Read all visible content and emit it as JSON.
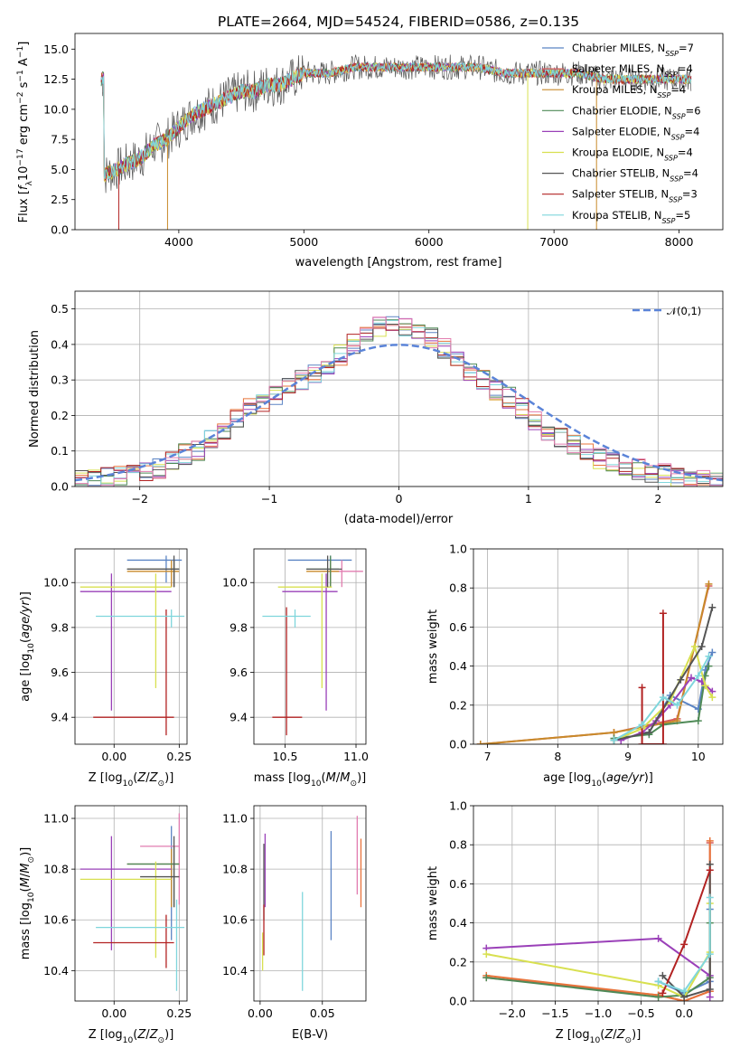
{
  "chart_data": [
    {
      "id": "spectrum",
      "type": "line",
      "title": "PLATE=2664, MJD=54524, FIBERID=0586, z=0.135",
      "xlabel": "wavelength [Angstrom, rest frame]",
      "ylabel": "Flux [f_λ 10^-17 erg cm^-2 s^-1 A^-1]",
      "xlim": [
        3170,
        8350
      ],
      "ylim": [
        0,
        16.3
      ],
      "xticks": [
        4000,
        5000,
        6000,
        7000,
        8000
      ],
      "yticks": [
        0.0,
        2.5,
        5.0,
        7.5,
        10.0,
        12.5,
        15.0
      ],
      "grid": false,
      "legend_position": "right",
      "series": [
        {
          "name": "Chabrier MILES, N_SSP=7",
          "color": "#5b84c4"
        },
        {
          "name": "Salpeter MILES, N_SSP=4",
          "color": "#d65a5a"
        },
        {
          "name": "Kroupa MILES, N_SSP=4",
          "color": "#c88a2a"
        },
        {
          "name": "Chabrier ELODIE, N_SSP=6",
          "color": "#4f8a57"
        },
        {
          "name": "Salpeter ELODIE, N_SSP=4",
          "color": "#9a40b8"
        },
        {
          "name": "Kroupa ELODIE, N_SSP=4",
          "color": "#d8e050"
        },
        {
          "name": "Chabrier STELIB, N_SSP=4",
          "color": "#555555"
        },
        {
          "name": "Salpeter STELIB, N_SSP=3",
          "color": "#b22222"
        },
        {
          "name": "Kroupa STELIB, N_SSP=5",
          "color": "#7fd6dc"
        }
      ],
      "data_envelope": {
        "x": [
          3400,
          3500,
          3600,
          3700,
          3800,
          3900,
          4000,
          4100,
          4200,
          4300,
          4400,
          4500,
          4600,
          4700,
          4800,
          4900,
          5000,
          5200,
          5400,
          5600,
          5800,
          6000,
          6200,
          6400,
          6600,
          6800,
          7000,
          7200,
          7400,
          7600,
          7800,
          8000,
          8100
        ],
        "y": [
          4.5,
          5.0,
          5.5,
          6.0,
          7.0,
          7.5,
          8.5,
          9.5,
          10.0,
          10.5,
          11.0,
          11.5,
          11.5,
          12.0,
          12.0,
          12.5,
          13.0,
          13.0,
          13.5,
          13.5,
          13.5,
          13.5,
          13.5,
          13.5,
          13.0,
          13.0,
          13.0,
          13.0,
          12.5,
          12.5,
          12.5,
          12.5,
          12.5
        ]
      }
    },
    {
      "id": "residuals",
      "type": "histogram",
      "xlabel": "(data-model)/error",
      "ylabel": "Normed distribution",
      "xlim": [
        -2.5,
        2.5
      ],
      "ylim": [
        0,
        0.55
      ],
      "xticks": [
        -2,
        -1,
        0,
        1,
        2
      ],
      "yticks": [
        0.0,
        0.1,
        0.2,
        0.3,
        0.4,
        0.5
      ],
      "grid": true,
      "legend": "𝒩(0,1)",
      "legend_position": "top-right",
      "reference_color": "#5b84d8",
      "bin_width": 0.1,
      "bin_values": [
        0.015,
        0.02,
        0.025,
        0.03,
        0.035,
        0.04,
        0.05,
        0.07,
        0.09,
        0.1,
        0.13,
        0.15,
        0.19,
        0.22,
        0.24,
        0.26,
        0.28,
        0.3,
        0.32,
        0.34,
        0.37,
        0.4,
        0.42,
        0.45,
        0.46,
        0.45,
        0.43,
        0.42,
        0.39,
        0.36,
        0.32,
        0.3,
        0.27,
        0.25,
        0.22,
        0.19,
        0.16,
        0.14,
        0.12,
        0.1,
        0.08,
        0.07,
        0.06,
        0.05,
        0.04,
        0.035,
        0.03,
        0.025,
        0.02,
        0.015
      ]
    },
    {
      "id": "age-vs-Z",
      "type": "errorbar",
      "xlabel": "Z [log10(Z/Z⊙)]",
      "ylabel": "age  [log10(age/yr)]",
      "xlim": [
        -0.15,
        0.28
      ],
      "ylim": [
        9.28,
        10.15
      ],
      "xticks": [
        0.0,
        0.25
      ],
      "xticklabels": [
        "0.00",
        "0.25"
      ],
      "yticks": [
        9.4,
        9.6,
        9.8,
        10.0
      ],
      "grid": true,
      "points": [
        {
          "x": 0.2,
          "y": 10.1,
          "xlo": 0.05,
          "xhi": 0.26,
          "ylo": 10.0,
          "yhi": 10.12,
          "color": "#5b84c4"
        },
        {
          "x": 0.23,
          "y": 10.06,
          "xlo": 0.05,
          "xhi": 0.25,
          "ylo": 9.98,
          "yhi": 10.1,
          "color": "#d65a5a"
        },
        {
          "x": 0.22,
          "y": 10.05,
          "xlo": 0.05,
          "xhi": 0.25,
          "ylo": 9.98,
          "yhi": 10.1,
          "color": "#c88a2a"
        },
        {
          "x": 0.23,
          "y": 10.06,
          "xlo": 0.05,
          "xhi": 0.25,
          "ylo": 9.98,
          "yhi": 10.1,
          "color": "#4f8a57"
        },
        {
          "x": -0.01,
          "y": 9.96,
          "xlo": -0.13,
          "xhi": 0.22,
          "ylo": 9.43,
          "yhi": 10.04,
          "color": "#9a40b8"
        },
        {
          "x": 0.16,
          "y": 9.98,
          "xlo": -0.13,
          "xhi": 0.22,
          "ylo": 9.53,
          "yhi": 10.04,
          "color": "#d8e050"
        },
        {
          "x": 0.23,
          "y": 10.06,
          "xlo": 0.05,
          "xhi": 0.25,
          "ylo": 9.98,
          "yhi": 10.12,
          "color": "#555555"
        },
        {
          "x": 0.2,
          "y": 9.4,
          "xlo": -0.08,
          "xhi": 0.23,
          "ylo": 9.32,
          "yhi": 9.88,
          "color": "#b22222"
        },
        {
          "x": 0.22,
          "y": 9.85,
          "xlo": -0.07,
          "xhi": 0.27,
          "ylo": 9.8,
          "yhi": 9.88,
          "color": "#7fd6dc"
        }
      ]
    },
    {
      "id": "age-vs-mass",
      "type": "errorbar",
      "xlabel": "mass [log10(M/M⊙)]",
      "ylabel": "",
      "xlim": [
        10.28,
        11.07
      ],
      "ylim": [
        9.28,
        10.15
      ],
      "xticks": [
        10.5,
        11.0
      ],
      "xticklabels": [
        "10.5",
        "11.0"
      ],
      "yticks": [
        9.4,
        9.6,
        9.8,
        10.0
      ],
      "grid": true,
      "points": [
        {
          "x": 10.82,
          "y": 10.1,
          "xlo": 10.52,
          "xhi": 10.97,
          "ylo": 9.99,
          "yhi": 10.12,
          "color": "#5b84c4"
        },
        {
          "x": 10.9,
          "y": 10.05,
          "xlo": 10.76,
          "xhi": 11.05,
          "ylo": 9.98,
          "yhi": 10.1,
          "color": "#e27db0"
        },
        {
          "x": 10.82,
          "y": 10.05,
          "xlo": 10.65,
          "xhi": 10.88,
          "ylo": 9.98,
          "yhi": 10.1,
          "color": "#c88a2a"
        },
        {
          "x": 10.82,
          "y": 10.06,
          "xlo": 10.65,
          "xhi": 10.88,
          "ylo": 9.98,
          "yhi": 10.12,
          "color": "#4f8a57"
        },
        {
          "x": 10.79,
          "y": 9.96,
          "xlo": 10.48,
          "xhi": 10.87,
          "ylo": 9.43,
          "yhi": 10.04,
          "color": "#9a40b8"
        },
        {
          "x": 10.76,
          "y": 9.98,
          "xlo": 10.45,
          "xhi": 10.83,
          "ylo": 9.53,
          "yhi": 10.04,
          "color": "#d8e050"
        },
        {
          "x": 10.8,
          "y": 10.06,
          "xlo": 10.65,
          "xhi": 10.9,
          "ylo": 9.98,
          "yhi": 10.12,
          "color": "#555555"
        },
        {
          "x": 10.51,
          "y": 9.4,
          "xlo": 10.41,
          "xhi": 10.62,
          "ylo": 9.32,
          "yhi": 9.89,
          "color": "#b22222"
        },
        {
          "x": 10.57,
          "y": 9.85,
          "xlo": 10.34,
          "xhi": 10.68,
          "ylo": 9.8,
          "yhi": 9.88,
          "color": "#7fd6dc"
        }
      ]
    },
    {
      "id": "weight-vs-age",
      "type": "line",
      "xlabel": "age  [log10(age/yr)]",
      "ylabel": "mass weight",
      "xlim": [
        6.8,
        10.35
      ],
      "ylim": [
        0,
        1.0
      ],
      "xticks": [
        7,
        8,
        9,
        10
      ],
      "yticks": [
        0.0,
        0.2,
        0.4,
        0.6,
        0.8,
        1.0
      ],
      "grid": true,
      "series": [
        {
          "color": "#5b84c4",
          "x": [
            8.8,
            9.3,
            9.6,
            10.0,
            10.1,
            10.2
          ],
          "y": [
            0.02,
            0.06,
            0.25,
            0.18,
            0.38,
            0.47
          ]
        },
        {
          "color": "#d65a5a",
          "x": [
            6.9,
            8.8,
            9.7,
            10.15
          ],
          "y": [
            0.0,
            0.06,
            0.13,
            0.81
          ]
        },
        {
          "color": "#c88a2a",
          "x": [
            6.9,
            8.8,
            9.7,
            10.15
          ],
          "y": [
            0.0,
            0.06,
            0.12,
            0.82
          ]
        },
        {
          "color": "#4f8a57",
          "x": [
            8.8,
            9.3,
            9.5,
            10.0,
            10.1,
            10.15
          ],
          "y": [
            0.03,
            0.05,
            0.1,
            0.12,
            0.35,
            0.4
          ]
        },
        {
          "color": "#9a40b8",
          "x": [
            8.9,
            9.2,
            9.4,
            9.6,
            9.9,
            10.05,
            10.2
          ],
          "y": [
            0.02,
            0.06,
            0.12,
            0.2,
            0.34,
            0.32,
            0.27
          ]
        },
        {
          "color": "#d8e050",
          "x": [
            8.8,
            9.2,
            9.6,
            9.95,
            10.1,
            10.2
          ],
          "y": [
            0.02,
            0.08,
            0.22,
            0.5,
            0.3,
            0.24
          ]
        },
        {
          "color": "#555555",
          "x": [
            8.8,
            9.3,
            9.75,
            10.05,
            10.2
          ],
          "y": [
            0.02,
            0.06,
            0.33,
            0.5,
            0.7
          ]
        },
        {
          "color": "#b22222",
          "x": [
            9.2,
            9.2,
            9.5,
            9.5
          ],
          "y": [
            0.29,
            0.0,
            0.0,
            0.67
          ]
        },
        {
          "color": "#7fd6dc",
          "x": [
            8.8,
            9.2,
            9.5,
            9.7,
            10.0,
            10.15
          ],
          "y": [
            0.02,
            0.1,
            0.24,
            0.2,
            0.35,
            0.45
          ]
        }
      ]
    },
    {
      "id": "mass-vs-Z",
      "type": "errorbar",
      "xlabel": "Z [log10(Z/Z⊙)]",
      "ylabel": "mass [log10(M/M⊙)]",
      "xlim": [
        -0.15,
        0.28
      ],
      "ylim": [
        10.28,
        11.05
      ],
      "xticks": [
        0.0,
        0.25
      ],
      "xticklabels": [
        "0.00",
        "0.25"
      ],
      "yticks": [
        10.4,
        10.6,
        10.8,
        11.0
      ],
      "grid": true,
      "points": [
        {
          "x": 0.22,
          "y": 10.82,
          "xlo": 0.05,
          "xhi": 0.25,
          "ylo": 10.52,
          "yhi": 10.97,
          "color": "#5b84c4"
        },
        {
          "x": 0.25,
          "y": 10.89,
          "xlo": 0.1,
          "xhi": 0.25,
          "ylo": 10.66,
          "yhi": 11.02,
          "color": "#e27db0"
        },
        {
          "x": 0.22,
          "y": 10.82,
          "xlo": 0.05,
          "xhi": 0.25,
          "ylo": 10.65,
          "yhi": 10.88,
          "color": "#c88a2a"
        },
        {
          "x": 0.23,
          "y": 10.82,
          "xlo": 0.05,
          "xhi": 0.25,
          "ylo": 10.65,
          "yhi": 10.89,
          "color": "#4f8a57"
        },
        {
          "x": -0.01,
          "y": 10.8,
          "xlo": -0.13,
          "xhi": 0.22,
          "ylo": 10.48,
          "yhi": 10.93,
          "color": "#9a40b8"
        },
        {
          "x": 0.16,
          "y": 10.76,
          "xlo": -0.13,
          "xhi": 0.22,
          "ylo": 10.45,
          "yhi": 10.83,
          "color": "#d8e050"
        },
        {
          "x": 0.23,
          "y": 10.77,
          "xlo": 0.1,
          "xhi": 0.25,
          "ylo": 10.65,
          "yhi": 10.93,
          "color": "#555555"
        },
        {
          "x": 0.2,
          "y": 10.51,
          "xlo": -0.08,
          "xhi": 0.23,
          "ylo": 10.41,
          "yhi": 10.62,
          "color": "#b22222"
        },
        {
          "x": 0.24,
          "y": 10.57,
          "xlo": -0.07,
          "xhi": 0.27,
          "ylo": 10.32,
          "yhi": 10.68,
          "color": "#7fd6dc"
        }
      ]
    },
    {
      "id": "mass-vs-EBV",
      "type": "errorbar",
      "xlabel": "E(B-V)",
      "ylabel": "",
      "xlim": [
        -0.005,
        0.085
      ],
      "ylim": [
        10.28,
        11.05
      ],
      "xticks": [
        0.0,
        0.05
      ],
      "xticklabels": [
        "0.00",
        "0.05"
      ],
      "yticks": [
        10.4,
        10.6,
        10.8,
        11.0
      ],
      "grid": true,
      "points": [
        {
          "x": 0.057,
          "y": 10.8,
          "ylo": 10.52,
          "yhi": 10.95,
          "color": "#5b84c4"
        },
        {
          "x": 0.081,
          "y": 10.78,
          "ylo": 10.65,
          "yhi": 10.92,
          "color": "#e8743b"
        },
        {
          "x": 0.078,
          "y": 10.85,
          "ylo": 10.7,
          "yhi": 11.01,
          "color": "#e27db0"
        },
        {
          "x": 0.004,
          "y": 10.8,
          "ylo": 10.65,
          "yhi": 10.94,
          "color": "#9a40b8"
        },
        {
          "x": 0.002,
          "y": 10.45,
          "ylo": 10.4,
          "yhi": 10.55,
          "color": "#d8e050"
        },
        {
          "x": 0.003,
          "y": 10.75,
          "ylo": 10.6,
          "yhi": 10.9,
          "color": "#555555"
        },
        {
          "x": 0.003,
          "y": 10.51,
          "ylo": 10.46,
          "yhi": 10.66,
          "color": "#b22222"
        },
        {
          "x": 0.034,
          "y": 10.57,
          "ylo": 10.32,
          "yhi": 10.71,
          "color": "#7fd6dc"
        }
      ]
    },
    {
      "id": "weight-vs-Z",
      "type": "line",
      "xlabel": "Z [log10(Z/Z⊙)]",
      "ylabel": "mass weight",
      "xlim": [
        -2.45,
        0.45
      ],
      "ylim": [
        0,
        1.0
      ],
      "xticks": [
        -2.0,
        -1.5,
        -1.0,
        -0.5,
        0.0
      ],
      "yticks": [
        0.0,
        0.2,
        0.4,
        0.6,
        0.8,
        1.0
      ],
      "grid": true,
      "series": [
        {
          "color": "#5b84c4",
          "x": [
            -0.3,
            0.0,
            0.3,
            0.3
          ],
          "y": [
            0.1,
            0.04,
            0.1,
            0.47
          ]
        },
        {
          "color": "#d65a5a",
          "x": [
            -2.3,
            -0.3,
            0.0,
            0.3,
            0.3
          ],
          "y": [
            0.12,
            0.03,
            0.0,
            0.05,
            0.81
          ]
        },
        {
          "color": "#e8743b",
          "x": [
            -2.3,
            -0.3,
            0.0,
            0.3,
            0.3
          ],
          "y": [
            0.13,
            0.03,
            0.0,
            0.05,
            0.82
          ]
        },
        {
          "color": "#4f8a57",
          "x": [
            -2.3,
            -0.3,
            0.0,
            0.3,
            0.3
          ],
          "y": [
            0.12,
            0.02,
            0.03,
            0.12,
            0.4
          ]
        },
        {
          "color": "#9a40b8",
          "x": [
            -2.3,
            -0.3,
            0.3,
            0.3
          ],
          "y": [
            0.27,
            0.32,
            0.13,
            0.02
          ]
        },
        {
          "color": "#d8e050",
          "x": [
            -2.3,
            -0.3,
            0.0,
            0.3,
            0.3
          ],
          "y": [
            0.24,
            0.08,
            0.02,
            0.25,
            0.5
          ]
        },
        {
          "color": "#555555",
          "x": [
            -0.25,
            0.0,
            0.3,
            0.3
          ],
          "y": [
            0.13,
            0.02,
            0.06,
            0.7
          ]
        },
        {
          "color": "#b22222",
          "x": [
            -0.25,
            0.0,
            0.3
          ],
          "y": [
            0.04,
            0.29,
            0.67
          ]
        },
        {
          "color": "#7fd6dc",
          "x": [
            -0.3,
            0.0,
            0.3,
            0.3
          ],
          "y": [
            0.1,
            0.05,
            0.24,
            0.53
          ]
        }
      ]
    }
  ]
}
